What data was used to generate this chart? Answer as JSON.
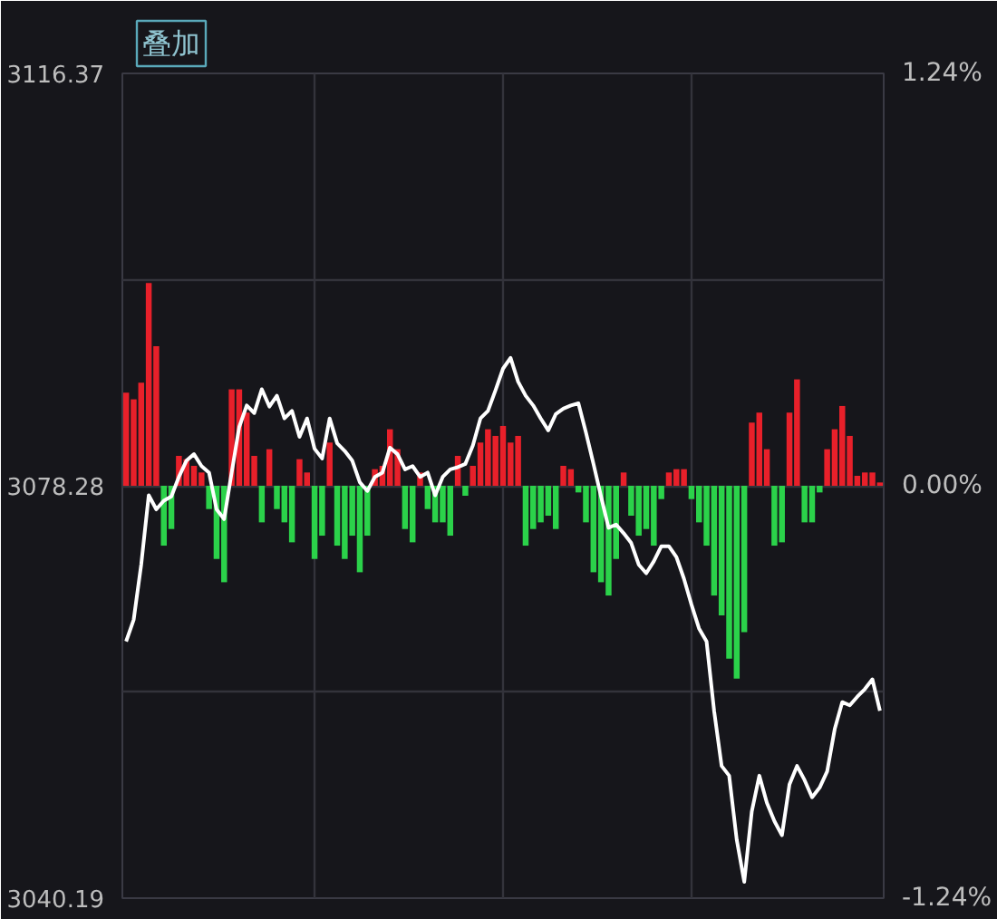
{
  "chart_data": {
    "type": "line",
    "annotations": [
      "叠加"
    ],
    "categories": [
      null,
      null,
      null,
      null,
      null,
      null,
      null,
      null,
      null,
      null,
      null,
      null,
      null,
      null,
      null,
      null,
      null,
      null,
      null,
      null,
      null,
      null,
      null,
      null,
      null,
      null,
      null,
      null,
      null,
      null,
      null,
      null,
      null,
      null,
      null,
      null,
      null,
      null,
      null,
      null,
      null,
      null,
      null,
      null,
      null,
      null,
      null,
      null,
      null,
      null,
      null,
      null,
      null,
      null,
      null,
      null,
      null,
      null,
      null,
      null,
      null,
      null,
      null,
      null,
      null,
      null,
      null,
      null,
      null,
      null,
      null,
      null,
      null,
      null,
      null,
      null,
      null,
      null,
      null,
      null,
      null,
      null,
      null,
      null,
      null,
      null,
      null,
      null,
      null,
      null,
      null,
      null,
      null,
      null,
      null,
      null,
      null,
      null,
      null,
      null,
      null
    ],
    "series": [
      {
        "type": "bar",
        "axis": "y2",
        "color": "#e8202a",
        "values": [
          0.28,
          0.26,
          0.31,
          0.61,
          0.42,
          null,
          null,
          0.09,
          0.08,
          0.06,
          0.04,
          null,
          null,
          null,
          0.29,
          0.29,
          0.22,
          0.09,
          null,
          0.11,
          null,
          null,
          null,
          0.08,
          0.04,
          null,
          null,
          0.13,
          null,
          null,
          null,
          null,
          null,
          0.05,
          0.06,
          0.17,
          0.11,
          null,
          null,
          0.04,
          null,
          null,
          null,
          null,
          0.09,
          null,
          0.06,
          0.13,
          0.17,
          0.15,
          0.18,
          0.13,
          0.15,
          null,
          null,
          null,
          null,
          null,
          0.06,
          0.05,
          null,
          null,
          null,
          null,
          null,
          null,
          0.04,
          null,
          null,
          null,
          null,
          null,
          0.04,
          0.05,
          0.05,
          null,
          null,
          null,
          null,
          null,
          null,
          null,
          null,
          0.19,
          0.22,
          0.11,
          null,
          null,
          0.22,
          0.32,
          null,
          null,
          null,
          0.11,
          0.17,
          0.24,
          0.15,
          0.03,
          0.04,
          0.04,
          0.01
        ]
      },
      {
        "type": "bar",
        "axis": "y2",
        "color": "#2bd24a",
        "values": [
          null,
          null,
          null,
          null,
          null,
          -0.18,
          -0.13,
          null,
          null,
          null,
          null,
          -0.07,
          -0.22,
          -0.29,
          null,
          null,
          null,
          null,
          -0.11,
          null,
          -0.07,
          -0.11,
          -0.17,
          null,
          null,
          -0.22,
          -0.15,
          null,
          -0.18,
          -0.22,
          -0.15,
          -0.26,
          -0.15,
          null,
          null,
          null,
          null,
          -0.13,
          -0.17,
          null,
          -0.07,
          -0.11,
          -0.11,
          -0.15,
          null,
          -0.03,
          null,
          null,
          null,
          null,
          null,
          null,
          null,
          -0.18,
          -0.13,
          -0.11,
          -0.09,
          -0.13,
          null,
          null,
          -0.02,
          -0.11,
          -0.26,
          -0.29,
          -0.33,
          -0.22,
          null,
          -0.09,
          -0.15,
          -0.13,
          -0.18,
          -0.04,
          null,
          null,
          null,
          -0.04,
          -0.11,
          -0.18,
          -0.33,
          -0.39,
          -0.52,
          -0.58,
          -0.44,
          null,
          null,
          null,
          -0.18,
          -0.17,
          null,
          null,
          -0.11,
          -0.11,
          -0.02,
          null,
          null,
          null,
          null,
          null,
          null,
          null,
          null
        ]
      },
      {
        "color": "#ffffff",
        "values": [
          3063.9,
          3065.9,
          3071.0,
          3077.4,
          3076.1,
          3076.9,
          3077.3,
          3079.1,
          3080.6,
          3081.2,
          3080.1,
          3079.5,
          3076.1,
          3075.2,
          3079.5,
          3083.7,
          3085.7,
          3085.0,
          3087.2,
          3085.6,
          3086.6,
          3084.5,
          3085.2,
          3082.8,
          3084.5,
          3081.7,
          3080.8,
          3084.5,
          3082.2,
          3081.5,
          3080.6,
          3078.6,
          3077.8,
          3079.1,
          3079.5,
          3081.8,
          3081.2,
          3079.8,
          3080.1,
          3079.1,
          3079.5,
          3077.4,
          3079.1,
          3079.8,
          3080.0,
          3080.3,
          3082.0,
          3084.5,
          3085.2,
          3087.1,
          3089.1,
          3090.1,
          3087.9,
          3086.6,
          3085.7,
          3084.5,
          3083.4,
          3084.9,
          3085.4,
          3085.7,
          3085.9,
          3083.2,
          3080.3,
          3077.3,
          3074.4,
          3074.7,
          3073.9,
          3073.0,
          3071.0,
          3070.2,
          3071.3,
          3072.7,
          3072.7,
          3071.7,
          3069.7,
          3067.3,
          3065.1,
          3063.9,
          3057.5,
          3052.4,
          3051.5,
          3045.6,
          3041.7,
          3048.2,
          3051.5,
          3049.0,
          3047.3,
          3046.0,
          3050.7,
          3052.4,
          3051.1,
          3049.5,
          3050.4,
          3051.9,
          3055.8,
          3058.3,
          3058.0,
          3058.8,
          3059.5,
          3060.4,
          3057.5
        ]
      }
    ],
    "ylim": [
      3040.19,
      3116.37
    ],
    "yticks": [
      3040.19,
      {
        "value": 3059.235,
        "label": null
      },
      3078.28,
      {
        "value": 3097.325,
        "label": null
      },
      3116.37
    ],
    "y2lim": [
      -1.24,
      1.24
    ],
    "y2ticks": [
      {
        "value": -1.24,
        "label": "-1.24%"
      },
      {
        "value": 0,
        "label": "0.00%"
      },
      {
        "value": 1.24,
        "label": "1.24%"
      }
    ],
    "tick_labels": "y",
    "grid": true
  }
}
